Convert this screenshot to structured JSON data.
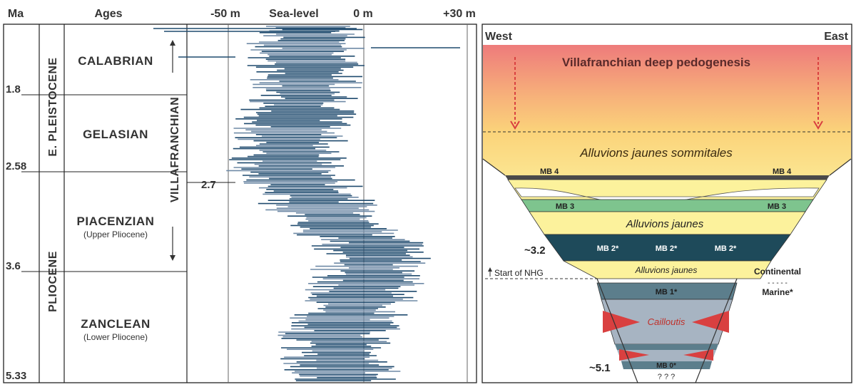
{
  "headers": {
    "ma": "Ma",
    "ages": "Ages",
    "minus50": "-50 m",
    "sealevel": "Sea-level",
    "zero": "0 m",
    "plus30": "+30 m"
  },
  "ages_ma": [
    "1.8",
    "2.58",
    "3.6",
    "5.33"
  ],
  "epochs": [
    "E. PLEISTOCENE",
    "PLIOCENE"
  ],
  "stages": {
    "calabrian": "CALABRIAN",
    "gelasian": "GELASIAN",
    "piacenzian": "PIACENZIAN",
    "piacenzian_sub": "(Upper Pliocene)",
    "zanclean": "ZANCLEAN",
    "zanclean_sub": "(Lower Pliocene)"
  },
  "villafranchian": "VILLAFRANCHIAN",
  "marker_27": "2.7",
  "section": {
    "west": "West",
    "east": "East",
    "pedogenesis": "Villafranchian deep pedogenesis",
    "ajs": "Alluvions jaunes sommitales",
    "mb4": "MB 4",
    "mb3": "MB 3",
    "aj": "Alluvions jaunes",
    "mb2": "MB 2*",
    "aj_lower": "Alluvions jaunes",
    "mb1": "MB 1*",
    "cailloutis": "Cailloutis",
    "mb0": "MB 0*",
    "unknown": "? ? ?",
    "age_32": "~3.2",
    "age_51": "~5.1",
    "nhg": "Start of NHG",
    "continental": "Continental",
    "dashes": "- - - - -",
    "marine": "Marine*"
  },
  "colors": {
    "curve": "#1f4a6e",
    "curve_light": "#6f8aa6",
    "mb_dark": "#1e4a5a",
    "mb_green": "#7ec48e",
    "yellow": "#fcf29c",
    "pedo_top": "#ee7b7b",
    "pedo_bottom": "#fbd37a",
    "gravel": "#a7b4c2",
    "arrow_red": "#d94040"
  }
}
